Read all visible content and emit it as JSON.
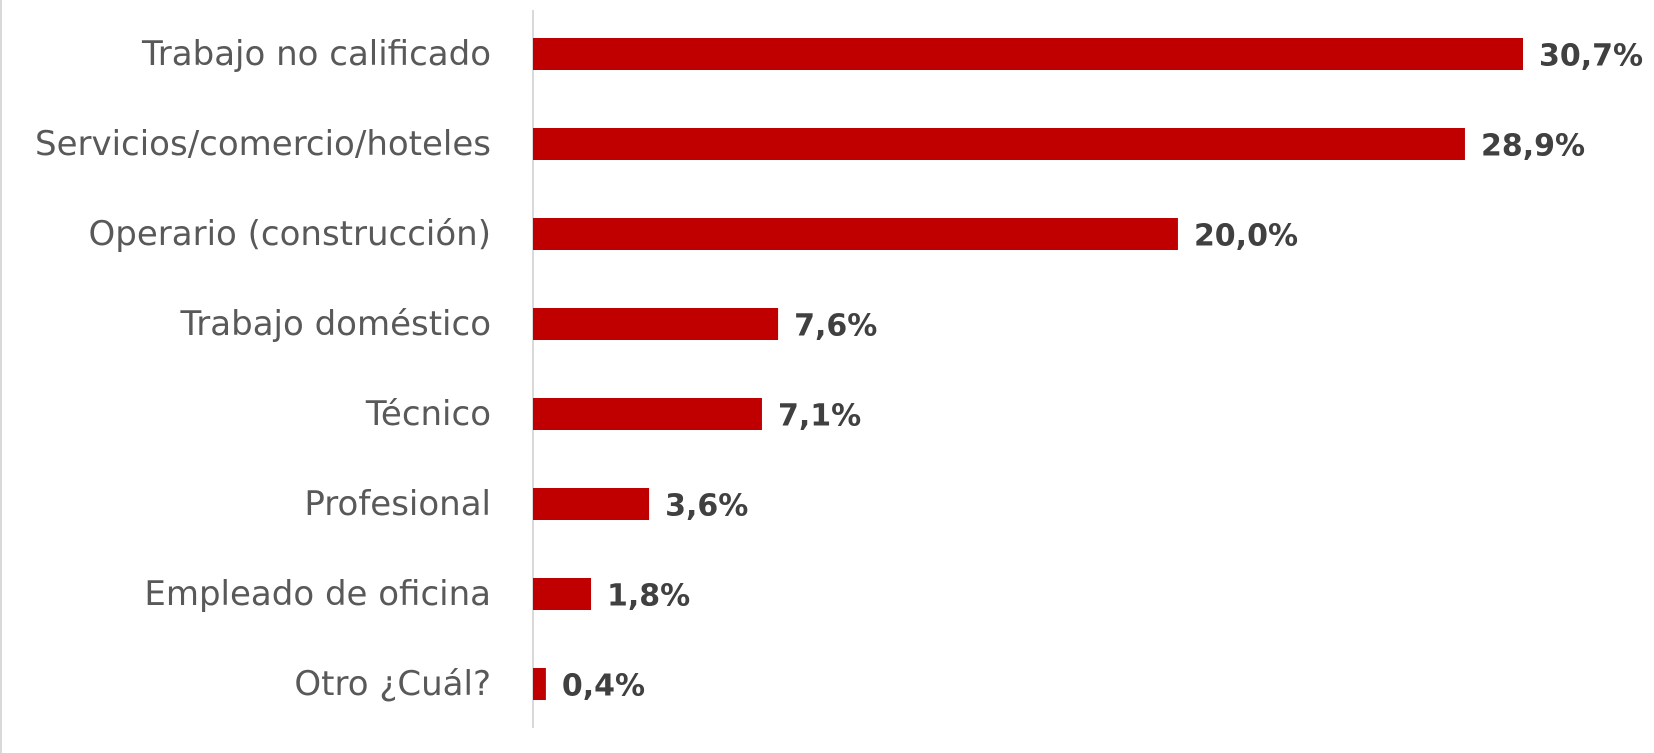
{
  "chart_data": {
    "type": "bar",
    "orientation": "horizontal",
    "categories": [
      "Trabajo no calificado",
      "Servicios/comercio/hoteles",
      "Operario (construcción)",
      "Trabajo doméstico",
      "Técnico",
      "Profesional",
      "Empleado de oficina",
      "Otro ¿Cuál?"
    ],
    "values": [
      30.7,
      28.9,
      20.0,
      7.6,
      7.1,
      3.6,
      1.8,
      0.4
    ],
    "value_labels": [
      "30,7%",
      "28,9%",
      "20,0%",
      "7,6%",
      "7,1%",
      "3,6%",
      "1,8%",
      "0,4%"
    ],
    "title": "",
    "xlabel": "",
    "ylabel": "",
    "xlim": [
      0,
      30.7
    ],
    "grid": false,
    "legend": "none",
    "bar_color": "#C00000",
    "axis_color": "#D9D9D9",
    "label_color": "#595959",
    "value_label_color": "#404040"
  }
}
